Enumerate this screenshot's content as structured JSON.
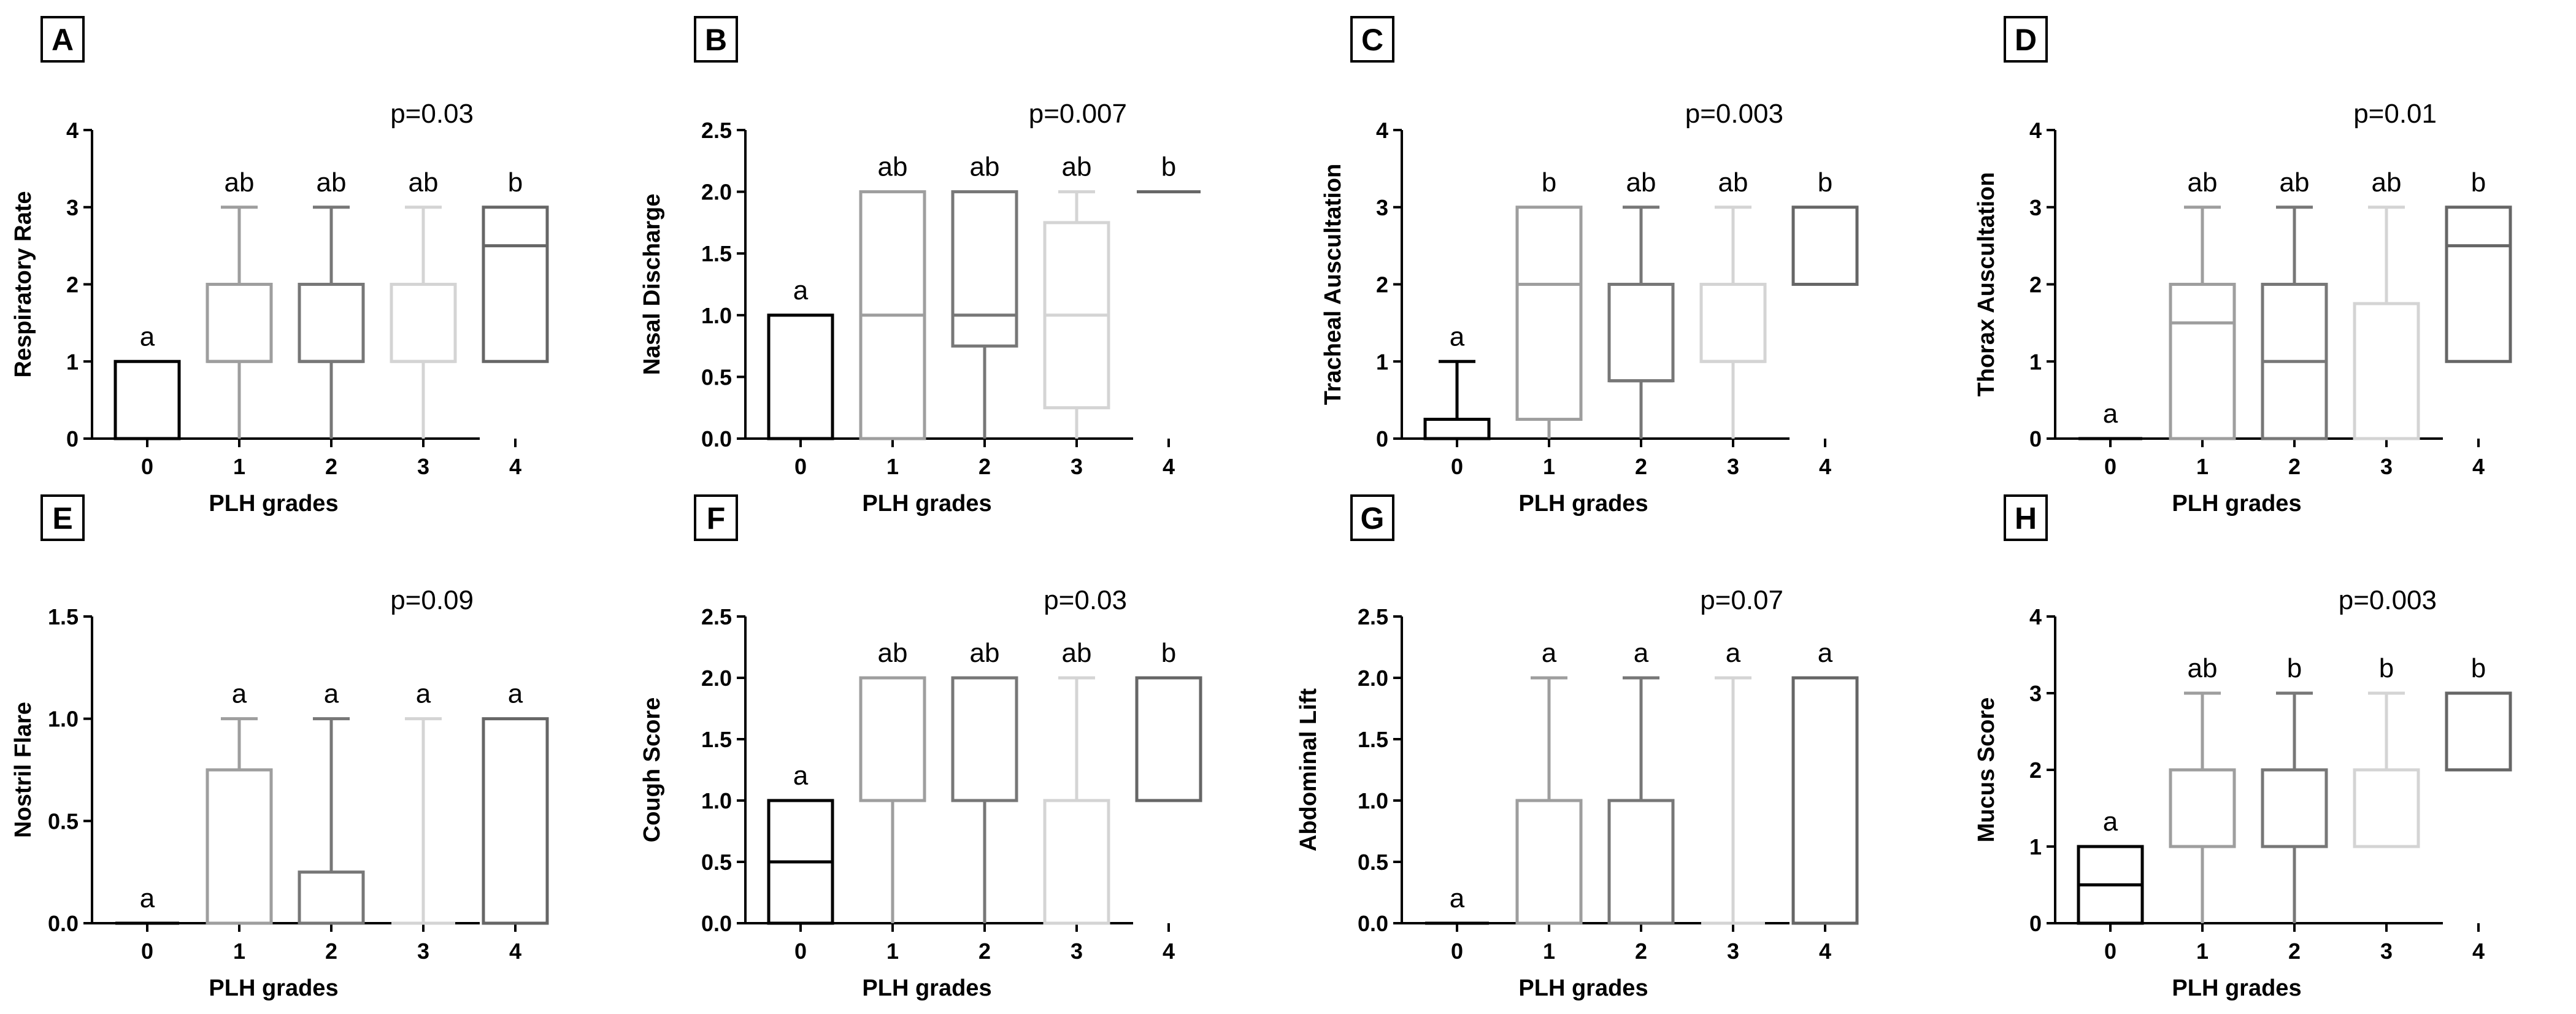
{
  "figure": {
    "panels_order": [
      "A",
      "B",
      "C",
      "D",
      "E",
      "F",
      "G",
      "H"
    ],
    "group_colors": [
      "#000000",
      "#9e9e9e",
      "#777777",
      "#d4d4d4",
      "#666666"
    ]
  },
  "chart_data": [
    {
      "panel": "A",
      "type": "box",
      "xlabel": "PLH grades",
      "ylabel": "Respiratory Rate",
      "categories": [
        "0",
        "1",
        "2",
        "3",
        "4"
      ],
      "ylim": [
        0,
        4
      ],
      "yticks": [
        "0",
        "1",
        "2",
        "3",
        "4"
      ],
      "p_value": "p=0.03",
      "letters": [
        "a",
        "ab",
        "ab",
        "ab",
        "b"
      ],
      "boxes": [
        {
          "min": 0,
          "q1": 0,
          "median": 0,
          "q3": 1,
          "max": 1
        },
        {
          "min": 0,
          "q1": 1,
          "median": 1,
          "q3": 2,
          "max": 3
        },
        {
          "min": 0,
          "q1": 1,
          "median": 1,
          "q3": 2,
          "max": 3
        },
        {
          "min": 0,
          "q1": 1,
          "median": 1,
          "q3": 2,
          "max": 3
        },
        {
          "min": 1,
          "q1": 1,
          "median": 2.5,
          "q3": 3,
          "max": 3
        }
      ]
    },
    {
      "panel": "B",
      "type": "box",
      "xlabel": "PLH grades",
      "ylabel": "Nasal Discharge",
      "categories": [
        "0",
        "1",
        "2",
        "3",
        "4"
      ],
      "ylim": [
        0,
        2.5
      ],
      "yticks": [
        "0.0",
        "0.5",
        "1.0",
        "1.5",
        "2.0",
        "2.5"
      ],
      "p_value": "p=0.007",
      "letters": [
        "a",
        "ab",
        "ab",
        "ab",
        "b"
      ],
      "boxes": [
        {
          "min": 0,
          "q1": 0,
          "median": 0,
          "q3": 1,
          "max": 1
        },
        {
          "min": 0,
          "q1": 0,
          "median": 1,
          "q3": 2,
          "max": 2
        },
        {
          "min": 0,
          "q1": 0.75,
          "median": 1,
          "q3": 2,
          "max": 2
        },
        {
          "min": 0,
          "q1": 0.25,
          "median": 1,
          "q3": 1.75,
          "max": 2
        },
        {
          "min": 2,
          "q1": 2,
          "median": 2,
          "q3": 2,
          "max": 2
        }
      ]
    },
    {
      "panel": "C",
      "type": "box",
      "xlabel": "PLH grades",
      "ylabel": "Tracheal Auscultation",
      "categories": [
        "0",
        "1",
        "2",
        "3",
        "4"
      ],
      "ylim": [
        0,
        4
      ],
      "yticks": [
        "0",
        "1",
        "2",
        "3",
        "4"
      ],
      "p_value": "p=0.003",
      "letters": [
        "a",
        "b",
        "ab",
        "ab",
        "b"
      ],
      "boxes": [
        {
          "min": 0,
          "q1": 0,
          "median": 0,
          "q3": 0.25,
          "max": 1
        },
        {
          "min": 0,
          "q1": 0.25,
          "median": 2,
          "q3": 3,
          "max": 3
        },
        {
          "min": 0,
          "q1": 0.75,
          "median": 0.75,
          "q3": 2,
          "max": 3
        },
        {
          "min": 0,
          "q1": 1,
          "median": 1,
          "q3": 2,
          "max": 3
        },
        {
          "min": 2,
          "q1": 2,
          "median": 2,
          "q3": 3,
          "max": 3
        }
      ]
    },
    {
      "panel": "D",
      "type": "box",
      "xlabel": "PLH grades",
      "ylabel": "Thorax Auscultation",
      "categories": [
        "0",
        "1",
        "2",
        "3",
        "4"
      ],
      "ylim": [
        0,
        4
      ],
      "yticks": [
        "0",
        "1",
        "2",
        "3",
        "4"
      ],
      "p_value": "p=0.01",
      "letters": [
        "a",
        "ab",
        "ab",
        "ab",
        "b"
      ],
      "boxes": [
        {
          "min": 0,
          "q1": 0,
          "median": 0,
          "q3": 0,
          "max": 0
        },
        {
          "min": 0,
          "q1": 0,
          "median": 1.5,
          "q3": 2,
          "max": 3
        },
        {
          "min": 0,
          "q1": 0,
          "median": 1,
          "q3": 2,
          "max": 3
        },
        {
          "min": 0,
          "q1": 0,
          "median": 0,
          "q3": 1.75,
          "max": 3
        },
        {
          "min": 1,
          "q1": 1,
          "median": 2.5,
          "q3": 3,
          "max": 3
        }
      ]
    },
    {
      "panel": "E",
      "type": "box",
      "xlabel": "PLH grades",
      "ylabel": "Nostril Flare",
      "categories": [
        "0",
        "1",
        "2",
        "3",
        "4"
      ],
      "ylim": [
        0,
        1.5
      ],
      "yticks": [
        "0.0",
        "0.5",
        "1.0",
        "1.5"
      ],
      "p_value": "p=0.09",
      "letters": [
        "a",
        "a",
        "a",
        "a",
        "a"
      ],
      "boxes": [
        {
          "min": 0,
          "q1": 0,
          "median": 0,
          "q3": 0,
          "max": 0
        },
        {
          "min": 0,
          "q1": 0,
          "median": 0,
          "q3": 0.75,
          "max": 1
        },
        {
          "min": 0,
          "q1": 0,
          "median": 0,
          "q3": 0.25,
          "max": 1
        },
        {
          "min": 0,
          "q1": 0,
          "median": 0,
          "q3": 0,
          "max": 1
        },
        {
          "min": 0,
          "q1": 0,
          "median": 0,
          "q3": 1,
          "max": 1
        }
      ]
    },
    {
      "panel": "F",
      "type": "box",
      "xlabel": "PLH grades",
      "ylabel": "Cough Score",
      "categories": [
        "0",
        "1",
        "2",
        "3",
        "4"
      ],
      "ylim": [
        0,
        2.5
      ],
      "yticks": [
        "0.0",
        "0.5",
        "1.0",
        "1.5",
        "2.0",
        "2.5"
      ],
      "p_value": "p=0.03",
      "letters": [
        "a",
        "ab",
        "ab",
        "ab",
        "b"
      ],
      "boxes": [
        {
          "min": 0,
          "q1": 0,
          "median": 0.5,
          "q3": 1,
          "max": 1
        },
        {
          "min": 0,
          "q1": 1,
          "median": 1,
          "q3": 2,
          "max": 2
        },
        {
          "min": 0,
          "q1": 1,
          "median": 1,
          "q3": 2,
          "max": 2
        },
        {
          "min": 0,
          "q1": 0,
          "median": 0,
          "q3": 1,
          "max": 2
        },
        {
          "min": 1,
          "q1": 1,
          "median": 1,
          "q3": 2,
          "max": 2
        }
      ]
    },
    {
      "panel": "G",
      "type": "box",
      "xlabel": "PLH grades",
      "ylabel": "Abdominal Lift",
      "categories": [
        "0",
        "1",
        "2",
        "3",
        "4"
      ],
      "ylim": [
        0,
        2.5
      ],
      "yticks": [
        "0.0",
        "0.5",
        "1.0",
        "1.5",
        "2.0",
        "2.5"
      ],
      "p_value": "p=0.07",
      "letters": [
        "a",
        "a",
        "a",
        "a",
        "a"
      ],
      "boxes": [
        {
          "min": 0,
          "q1": 0,
          "median": 0,
          "q3": 0,
          "max": 0
        },
        {
          "min": 0,
          "q1": 0,
          "median": 0,
          "q3": 1,
          "max": 2
        },
        {
          "min": 0,
          "q1": 0,
          "median": 0,
          "q3": 1,
          "max": 2
        },
        {
          "min": 0,
          "q1": 0,
          "median": 0,
          "q3": 0,
          "max": 2
        },
        {
          "min": 0,
          "q1": 0,
          "median": 0,
          "q3": 2,
          "max": 2
        }
      ]
    },
    {
      "panel": "H",
      "type": "box",
      "xlabel": "PLH grades",
      "ylabel": "Mucus Score",
      "categories": [
        "0",
        "1",
        "2",
        "3",
        "4"
      ],
      "ylim": [
        0,
        4
      ],
      "yticks": [
        "0",
        "1",
        "2",
        "3",
        "4"
      ],
      "p_value": "p=0.003",
      "letters": [
        "a",
        "ab",
        "b",
        "b",
        "b"
      ],
      "boxes": [
        {
          "min": 0,
          "q1": 0,
          "median": 0.5,
          "q3": 1,
          "max": 1
        },
        {
          "min": 0,
          "q1": 1,
          "median": 1,
          "q3": 2,
          "max": 3
        },
        {
          "min": 0,
          "q1": 1,
          "median": 1,
          "q3": 2,
          "max": 3
        },
        {
          "min": 1,
          "q1": 1,
          "median": 1,
          "q3": 2,
          "max": 3
        },
        {
          "min": 2,
          "q1": 2,
          "median": 2,
          "q3": 3,
          "max": 3
        }
      ]
    }
  ]
}
